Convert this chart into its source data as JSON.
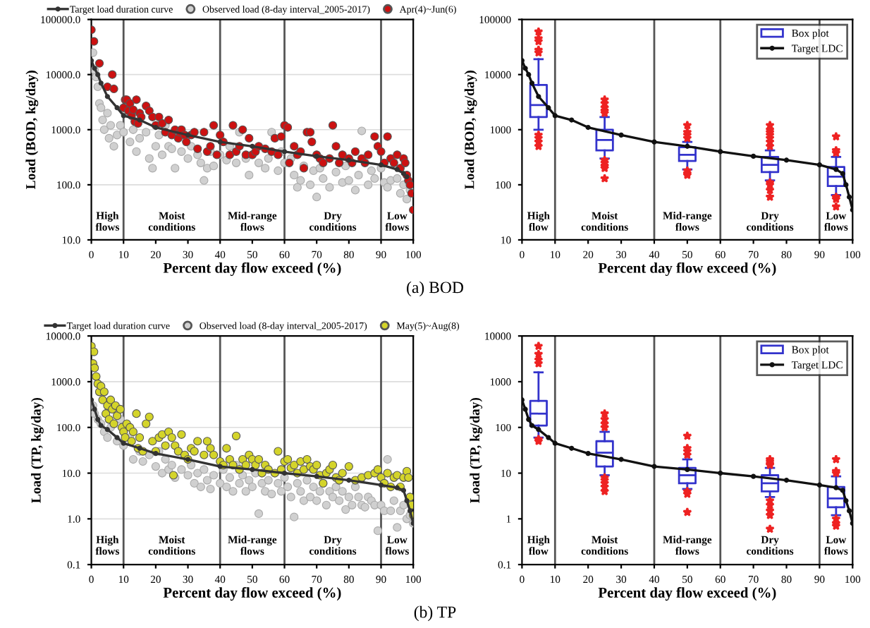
{
  "chart_data": [
    {
      "type": "scatter",
      "xlabel": "Percent day flow exceed (%)",
      "ylabel": "Load (BOD, kg/day)",
      "log": "y",
      "grid": "y",
      "legend": "top",
      "xlim": [
        0,
        100
      ],
      "xticks": [
        0,
        10,
        20,
        30,
        40,
        50,
        60,
        70,
        80,
        90,
        100
      ],
      "ylim": [
        10,
        100000
      ],
      "yticks": [
        {
          "value": 10,
          "label": "10.0"
        },
        {
          "value": 100,
          "label": "100.0"
        },
        {
          "value": 1000,
          "label": "1000.0"
        },
        {
          "value": 10000,
          "label": "10000.0"
        },
        {
          "value": 100000,
          "label": "100000.0"
        }
      ],
      "ref_lines": [
        {
          "axis": "x",
          "value": 10,
          "color": "#555555"
        },
        {
          "axis": "x",
          "value": 40,
          "color": "#555555"
        },
        {
          "axis": "x",
          "value": 60,
          "color": "#555555"
        },
        {
          "axis": "x",
          "value": 90,
          "color": "#555555"
        }
      ],
      "annotations": [
        "High\nflows",
        "Moist\nconditions",
        "Mid-range\nflows",
        "Dry\nconditions",
        "Low\nflows",
        "(a) BOD"
      ],
      "series": [
        {
          "name": "Target load duration curve",
          "type": "line",
          "marker": "circle",
          "color": "#333333",
          "x": [
            0,
            1,
            2,
            3,
            5,
            8,
            10,
            15,
            20,
            30,
            40,
            50,
            60,
            70,
            80,
            90,
            95,
            97,
            98
          ],
          "values": [
            18000,
            13000,
            10000,
            7000,
            4000,
            2500,
            1800,
            1500,
            1100,
            800,
            600,
            500,
            400,
            330,
            280,
            230,
            190,
            160,
            140
          ]
        },
        {
          "name": "Observed load (8-day interval_2005-2017)",
          "color": "#d0d0d0",
          "x": [
            0.5,
            1,
            1.5,
            2,
            2.5,
            3,
            3.5,
            4,
            5,
            5.5,
            6,
            7,
            8,
            9,
            10,
            11,
            12,
            13,
            14,
            15,
            17,
            18,
            19,
            20,
            21,
            22,
            23,
            24,
            25,
            26,
            28,
            30,
            31,
            33,
            34,
            35,
            36,
            37,
            38,
            40,
            42,
            43,
            45,
            46,
            48,
            49,
            50,
            52,
            54,
            55,
            56,
            58,
            59,
            60,
            62,
            63,
            64,
            65,
            66,
            68,
            69,
            70,
            71,
            72,
            74,
            76,
            78,
            79,
            80,
            82,
            83,
            84,
            86,
            87,
            88,
            90,
            91,
            92,
            93,
            95,
            96,
            97,
            98,
            99
          ],
          "values": [
            25000,
            12000,
            9000,
            6000,
            3000,
            2500,
            1500,
            1000,
            2000,
            700,
            1200,
            500,
            800,
            1200,
            900,
            2000,
            600,
            1000,
            400,
            700,
            900,
            300,
            200,
            500,
            800,
            350,
            1200,
            500,
            450,
            200,
            400,
            300,
            500,
            350,
            250,
            120,
            200,
            400,
            220,
            350,
            280,
            500,
            250,
            900,
            300,
            150,
            350,
            250,
            200,
            300,
            900,
            180,
            400,
            250,
            300,
            150,
            90,
            120,
            220,
            100,
            180,
            60,
            200,
            130,
            90,
            170,
            110,
            220,
            120,
            80,
            150,
            950,
            100,
            180,
            130,
            200,
            110,
            90,
            120,
            130,
            70,
            100,
            55,
            80
          ]
        },
        {
          "name": "Apr(4)~Jun(6)",
          "color": "#cc1111",
          "x": [
            0,
            0.8,
            2.5,
            5,
            6.5,
            7,
            10,
            10.5,
            11,
            11.5,
            12,
            12.5,
            13,
            13.5,
            14,
            14.5,
            15,
            15.5,
            17,
            18,
            19,
            20,
            21,
            22,
            23,
            24,
            25,
            26,
            27,
            27.5,
            28,
            29,
            29.5,
            31,
            32,
            33,
            35,
            36,
            37,
            38,
            39,
            40,
            41,
            43,
            44,
            45,
            46,
            47,
            48,
            49,
            50,
            51,
            52,
            54,
            56,
            57,
            58,
            59,
            60,
            61,
            61.5,
            63,
            64,
            65,
            66,
            67,
            68,
            68.5,
            70,
            71,
            72,
            74,
            75,
            76,
            77,
            78,
            80,
            81,
            82,
            84,
            85,
            86,
            88,
            89,
            90,
            91,
            92,
            93,
            94,
            95,
            96,
            97,
            97.5,
            98,
            98.5,
            99,
            99.5,
            100
          ],
          "values": [
            65000,
            40000,
            16000,
            6000,
            10000,
            5500,
            2500,
            3500,
            3500,
            2200,
            3000,
            1800,
            2300,
            1400,
            3500,
            1300,
            2000,
            1700,
            2700,
            2200,
            1700,
            1200,
            1700,
            1300,
            900,
            1500,
            800,
            1000,
            700,
            900,
            1000,
            800,
            600,
            800,
            900,
            450,
            900,
            400,
            500,
            1200,
            350,
            800,
            600,
            350,
            1200,
            400,
            500,
            1000,
            350,
            700,
            350,
            400,
            500,
            450,
            400,
            700,
            350,
            750,
            1200,
            1100,
            250,
            500,
            350,
            400,
            200,
            900,
            900,
            600,
            350,
            300,
            250,
            300,
            1200,
            500,
            250,
            350,
            300,
            250,
            400,
            300,
            250,
            350,
            750,
            500,
            400,
            250,
            750,
            300,
            250,
            350,
            200,
            300,
            250,
            150,
            120,
            100,
            70,
            35
          ]
        }
      ]
    },
    {
      "type": "box",
      "xlabel": "Percent day flow exceed (%)",
      "ylabel": "Load (BOD, kg/day)",
      "log": "y",
      "legend": "top right",
      "xlim": [
        0,
        100
      ],
      "xticks": [
        0,
        10,
        20,
        30,
        40,
        50,
        60,
        70,
        80,
        90,
        100
      ],
      "ylim": [
        10,
        100000
      ],
      "yticks": [
        10,
        100,
        1000,
        10000,
        100000
      ],
      "ref_lines": [
        {
          "axis": "x",
          "value": 10,
          "color": "#555555"
        },
        {
          "axis": "x",
          "value": 40,
          "color": "#555555"
        },
        {
          "axis": "x",
          "value": 60,
          "color": "#555555"
        },
        {
          "axis": "x",
          "value": 90,
          "color": "#555555"
        }
      ],
      "annotations": [
        "High\nflow",
        "Moist\nconditions",
        "Mid-range\nflows",
        "Dry\nconditions",
        "Low\nflows"
      ],
      "series": [
        {
          "name": "Box plot",
          "color": "#3333cc",
          "x": [
            5,
            25,
            50,
            75,
            95
          ],
          "boxes": [
            {
              "low": 1000,
              "q1": 1700,
              "median": 2800,
              "q3": 6500,
              "high": 19000,
              "outliers": [
                60000,
                45000,
                40000,
                28000,
                25000,
                800,
                700,
                600,
                500
              ]
            },
            {
              "low": 300,
              "q1": 420,
              "median": 650,
              "q3": 1000,
              "high": 1700,
              "outliers": [
                3500,
                3000,
                2500,
                2200,
                2000,
                280,
                250,
                220,
                200,
                130
              ]
            },
            {
              "low": 190,
              "q1": 270,
              "median": 350,
              "q3": 480,
              "high": 600,
              "outliers": [
                1200,
                900,
                800,
                700,
                180,
                160,
                150
              ]
            },
            {
              "low": 120,
              "q1": 170,
              "median": 230,
              "q3": 320,
              "high": 420,
              "outliers": [
                1200,
                1000,
                900,
                800,
                700,
                600,
                500,
                110,
                100,
                80,
                60
              ]
            },
            {
              "low": 65,
              "q1": 95,
              "median": 140,
              "q3": 210,
              "high": 320,
              "outliers": [
                750,
                420,
                380,
                60,
                55,
                40
              ]
            }
          ]
        },
        {
          "name": "Target LDC",
          "type": "line",
          "marker": "circle",
          "color": "#111111",
          "x": [
            0,
            1,
            2,
            3,
            5,
            8,
            10,
            15,
            20,
            30,
            40,
            50,
            60,
            70,
            80,
            90,
            95,
            97,
            98,
            99,
            100
          ],
          "values": [
            18000,
            13000,
            10000,
            7000,
            4000,
            2500,
            1800,
            1500,
            1100,
            800,
            600,
            500,
            400,
            330,
            280,
            230,
            190,
            160,
            100,
            60,
            35
          ]
        }
      ]
    },
    {
      "type": "scatter",
      "xlabel": "Percent day flow exceed (%)",
      "ylabel": "Load (TP, kg/day)",
      "log": "y",
      "grid": "y",
      "legend": "top",
      "xlim": [
        0,
        100
      ],
      "xticks": [
        0,
        10,
        20,
        30,
        40,
        50,
        60,
        70,
        80,
        90,
        100
      ],
      "ylim": [
        0.1,
        10000
      ],
      "yticks": [
        {
          "value": 0.1,
          "label": "0.1"
        },
        {
          "value": 1,
          "label": "1.0"
        },
        {
          "value": 10,
          "label": "10.0"
        },
        {
          "value": 100,
          "label": "100.0"
        },
        {
          "value": 1000,
          "label": "1000.0"
        },
        {
          "value": 10000,
          "label": "10000.0"
        }
      ],
      "ref_lines": [
        {
          "axis": "x",
          "value": 10,
          "color": "#555555"
        },
        {
          "axis": "x",
          "value": 40,
          "color": "#555555"
        },
        {
          "axis": "x",
          "value": 60,
          "color": "#555555"
        },
        {
          "axis": "x",
          "value": 90,
          "color": "#555555"
        }
      ],
      "annotations": [
        "High\nflows",
        "Moist\nconditions",
        "Mid-range\nflows",
        "Dry\nconditions",
        "Low\nflows",
        "(b) TP"
      ],
      "series": [
        {
          "name": "Target load duration curve",
          "type": "line",
          "marker": "circle",
          "color": "#333333",
          "x": [
            0,
            1,
            2,
            3,
            5,
            8,
            10,
            15,
            20,
            30,
            40,
            50,
            60,
            70,
            80,
            90,
            95,
            97,
            98,
            99,
            100
          ],
          "values": [
            400,
            250,
            150,
            110,
            90,
            60,
            45,
            35,
            27,
            20,
            14,
            12,
            10,
            8.5,
            7,
            5.5,
            4.8,
            4.2,
            2.5,
            1.5,
            0.8
          ]
        },
        {
          "name": "Observed load (8-day interval_2005-2017)",
          "color": "#d0d0d0",
          "x": [
            0.5,
            1,
            2,
            3,
            4,
            5,
            6,
            8,
            9,
            10,
            12,
            13,
            15,
            16,
            18,
            20,
            21,
            22,
            23,
            24,
            25,
            26,
            28,
            30,
            31,
            32,
            33,
            34,
            35,
            36,
            37,
            38,
            40,
            41,
            42,
            43,
            44,
            45,
            46,
            47,
            48,
            49,
            50,
            51,
            52,
            53,
            54,
            55,
            56,
            58,
            59,
            60,
            61,
            62,
            63,
            64,
            65,
            66,
            67,
            68,
            69,
            70,
            71,
            72,
            73,
            74,
            75,
            76,
            77,
            78,
            79,
            80,
            81,
            82,
            83,
            84,
            85,
            86,
            87,
            88,
            89,
            90,
            91,
            92,
            93,
            94,
            95,
            96,
            97,
            98,
            99,
            100
          ],
          "values": [
            300,
            200,
            150,
            120,
            80,
            60,
            100,
            50,
            150,
            40,
            60,
            20,
            30,
            18,
            25,
            14,
            30,
            10,
            20,
            12,
            15,
            8,
            12,
            9,
            15,
            6,
            10,
            5,
            12,
            7,
            4.5,
            9,
            6,
            12,
            5,
            8,
            4,
            15,
            6,
            9,
            4,
            7,
            5,
            10,
            1.3,
            6,
            4,
            7,
            3.5,
            6,
            4,
            8,
            5,
            3,
            1.1,
            6,
            4,
            2.5,
            7,
            3,
            5,
            2.5,
            4,
            6,
            2,
            4,
            3,
            5,
            2.5,
            4,
            1.6,
            3,
            2,
            5,
            3,
            2,
            1.8,
            3,
            2.5,
            2,
            0.55,
            2,
            1.5,
            20,
            1.5,
            2.5,
            0.65,
            1.5,
            2,
            1,
            1.2,
            0.8
          ]
        },
        {
          "name": "May(5)~Aug(8)",
          "color": "#d4d42a",
          "x": [
            0,
            0.5,
            0.8,
            1,
            1.5,
            2,
            2.5,
            3,
            3.5,
            4,
            4.5,
            5,
            5.5,
            6,
            6.5,
            7,
            7.5,
            8,
            9,
            9.5,
            10,
            10.5,
            11,
            12,
            12.5,
            13,
            14,
            14.5,
            15,
            16,
            17,
            18,
            19,
            20,
            21,
            22,
            23,
            24,
            25,
            25.5,
            26,
            27,
            28,
            29,
            30,
            31,
            32,
            33,
            35,
            36,
            37,
            38,
            40,
            41,
            42,
            43,
            44,
            45,
            46,
            47,
            48,
            49,
            50,
            51,
            52,
            53,
            54,
            55,
            57,
            58,
            59,
            60,
            61,
            62,
            63,
            64,
            65,
            66,
            67,
            68,
            69,
            70,
            71,
            72,
            73,
            74,
            75,
            76,
            77,
            78,
            80,
            82,
            84,
            86,
            88,
            89,
            90,
            91,
            92,
            93,
            94,
            95,
            96,
            97,
            98,
            98.5,
            99,
            99.5,
            100
          ],
          "values": [
            6000,
            2500,
            4500,
            2000,
            1300,
            900,
            600,
            800,
            400,
            600,
            200,
            300,
            150,
            400,
            250,
            120,
            300,
            180,
            250,
            100,
            80,
            60,
            120,
            100,
            50,
            80,
            200,
            35,
            60,
            30,
            120,
            170,
            50,
            30,
            60,
            70,
            40,
            80,
            60,
            9,
            40,
            30,
            70,
            25,
            20,
            35,
            30,
            50,
            25,
            50,
            35,
            25,
            18,
            15,
            35,
            20,
            15,
            65,
            12,
            20,
            15,
            25,
            20,
            15,
            20,
            10,
            15,
            12,
            10,
            30,
            12,
            18,
            20,
            13,
            15,
            10,
            18,
            12,
            20,
            14,
            12,
            15,
            9,
            6,
            10,
            12,
            15,
            8,
            7,
            10,
            14,
            7,
            8,
            9,
            10,
            12,
            8,
            6,
            10,
            5,
            8,
            9,
            5,
            8,
            11,
            8,
            3,
            2,
            1.2
          ]
        }
      ]
    },
    {
      "type": "box",
      "xlabel": "Percent day flow exceed (%)",
      "ylabel": "Load (TP, kg/day)",
      "log": "y",
      "legend": "top right",
      "xlim": [
        0,
        100
      ],
      "xticks": [
        0,
        10,
        20,
        30,
        40,
        50,
        60,
        70,
        80,
        90,
        100
      ],
      "ylim": [
        0.1,
        10000
      ],
      "yticks": [
        0.1,
        1,
        10,
        100,
        1000,
        10000
      ],
      "ref_lines": [
        {
          "axis": "x",
          "value": 10,
          "color": "#555555"
        },
        {
          "axis": "x",
          "value": 40,
          "color": "#555555"
        },
        {
          "axis": "x",
          "value": 60,
          "color": "#555555"
        },
        {
          "axis": "x",
          "value": 90,
          "color": "#555555"
        }
      ],
      "annotations": [
        "High\nflow",
        "Moist\nconditions",
        "Mid-range\nflows",
        "Dry\nconditions",
        "Low\nflows"
      ],
      "series": [
        {
          "name": "Box plot",
          "color": "#3333cc",
          "x": [
            5,
            25,
            50,
            75,
            95
          ],
          "boxes": [
            {
              "low": 60,
              "q1": 110,
              "median": 200,
              "q3": 380,
              "high": 1600,
              "outliers": [
                6000,
                4000,
                3000,
                2500,
                50,
                55
              ]
            },
            {
              "low": 9,
              "q1": 14,
              "median": 28,
              "q3": 50,
              "high": 80,
              "outliers": [
                200,
                150,
                120,
                100,
                8,
                7,
                6,
                5,
                4
              ]
            },
            {
              "low": 4.5,
              "q1": 6,
              "median": 9,
              "q3": 13,
              "high": 20,
              "outliers": [
                65,
                35,
                30,
                25,
                4,
                3.5,
                1.4
              ]
            },
            {
              "low": 3,
              "q1": 4,
              "median": 6,
              "q3": 9,
              "high": 13,
              "outliers": [
                20,
                18,
                16,
                15,
                2.5,
                2,
                1.5,
                1.2,
                0.6
              ]
            },
            {
              "low": 1.2,
              "q1": 1.8,
              "median": 2.8,
              "q3": 5,
              "high": 8.5,
              "outliers": [
                20,
                11,
                10,
                1,
                0.8,
                0.7
              ]
            }
          ]
        },
        {
          "name": "Target LDC",
          "type": "line",
          "marker": "circle",
          "color": "#111111",
          "x": [
            0,
            1,
            2,
            3,
            5,
            8,
            10,
            15,
            20,
            30,
            40,
            50,
            60,
            70,
            80,
            90,
            95,
            97,
            98,
            99,
            100
          ],
          "values": [
            400,
            250,
            150,
            110,
            90,
            60,
            45,
            35,
            27,
            20,
            14,
            12,
            10,
            8.5,
            7,
            5.5,
            4.8,
            4.2,
            2.5,
            1.5,
            0.8
          ]
        }
      ]
    }
  ]
}
